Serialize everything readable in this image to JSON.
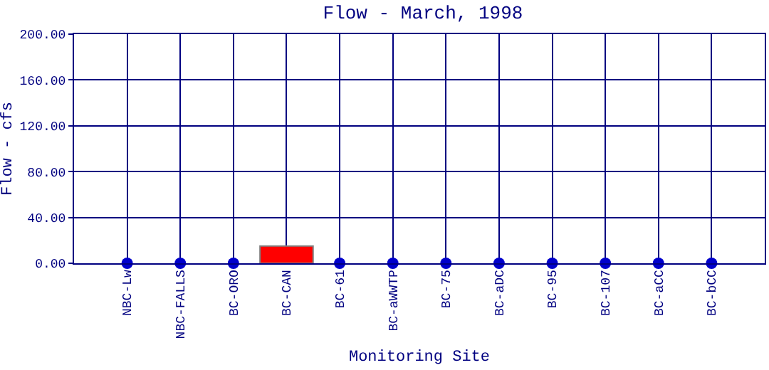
{
  "chart_data": {
    "type": "bar",
    "title": "Flow - March, 1998",
    "xlabel": "Monitoring Site",
    "ylabel": "Flow - cfs",
    "categories": [
      "NBC-Lw",
      "NBC-FALLS",
      "BC-ORO",
      "BC-CAN",
      "BC-61",
      "BC-aWWTP",
      "BC-75",
      "BC-aDC",
      "BC-95",
      "BC-107",
      "BC-aCC",
      "BC-bCC"
    ],
    "series": [
      {
        "color": "#ff0000",
        "values": [
          null,
          null,
          null,
          15,
          null,
          null,
          null,
          null,
          null,
          null,
          null,
          null
        ]
      },
      {
        "type": "scatter",
        "color": "#0000cc",
        "values": [
          0,
          0,
          0,
          null,
          0,
          0,
          0,
          0,
          0,
          0,
          0,
          0
        ]
      }
    ],
    "ylim": [
      0,
      200
    ],
    "yticks": [
      {
        "value": 0,
        "label": "0.00"
      },
      {
        "value": 40,
        "label": "40.00"
      },
      {
        "value": 80,
        "label": "80.00"
      },
      {
        "value": 120,
        "label": "120.00"
      },
      {
        "value": 160,
        "label": "160.00"
      },
      {
        "value": 200,
        "label": "200.00"
      }
    ],
    "grid": true,
    "legend": false,
    "marker": "circle"
  }
}
